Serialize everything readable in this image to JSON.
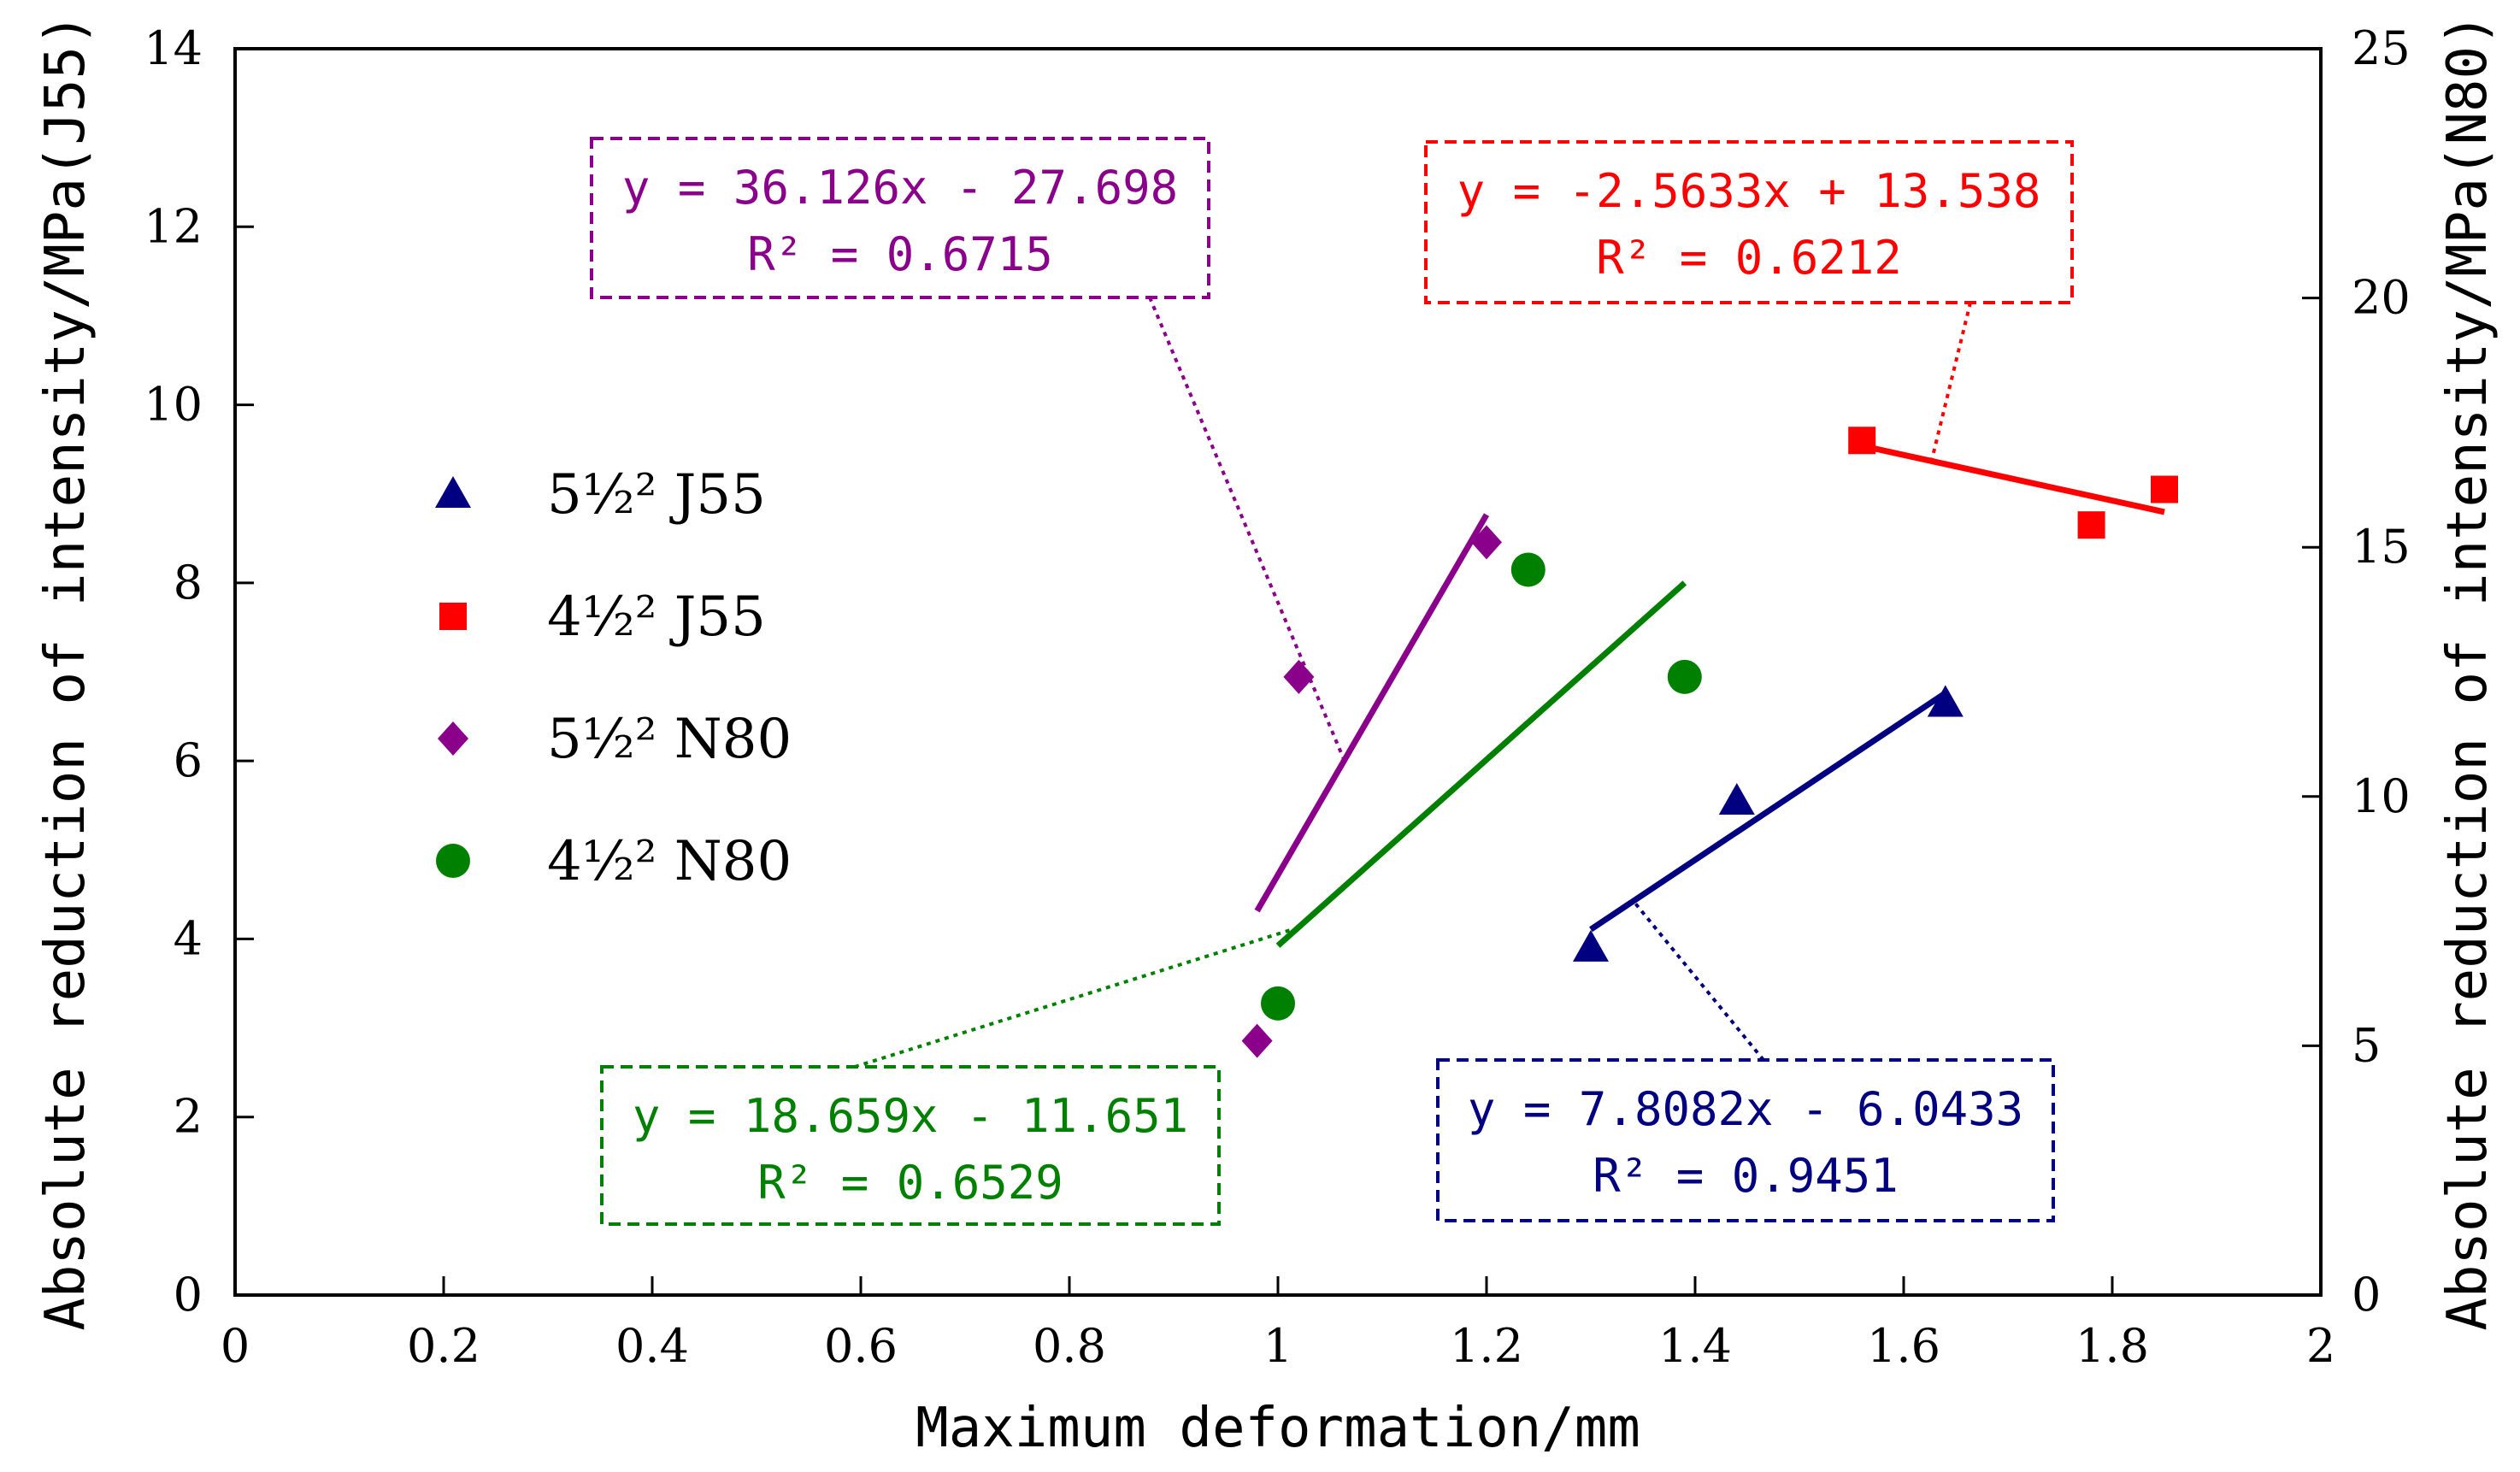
{
  "chart_data": {
    "type": "scatter",
    "x_axis": {
      "label": "Maximum deformation/mm",
      "range": [
        0,
        2
      ],
      "ticks": [
        "0",
        "0.2",
        "0.4",
        "0.6",
        "0.8",
        "1",
        "1.2",
        "1.4",
        "1.6",
        "1.8",
        "2"
      ]
    },
    "y_axis_left": {
      "label": "Absolute reduction of intensity/MPa(J55)",
      "range": [
        0,
        14
      ],
      "ticks": [
        "0",
        "2",
        "4",
        "6",
        "8",
        "10",
        "12",
        "14"
      ]
    },
    "y_axis_right": {
      "label": "Absolute reduction of intensity/MPa(N80)",
      "range": [
        0,
        25
      ],
      "ticks": [
        "0",
        "5",
        "10",
        "15",
        "20",
        "25"
      ]
    },
    "grid": false,
    "legend_position": "left",
    "series": [
      {
        "name": "5½² J55",
        "axis": "left",
        "marker": "triangle",
        "color": "#000080",
        "points": [
          [
            1.3,
            3.9
          ],
          [
            1.44,
            5.55
          ],
          [
            1.64,
            6.65
          ]
        ],
        "trendline": {
          "x_range": [
            1.3,
            1.64
          ],
          "equation": "y = 7.8082x - 6.0433",
          "r2": "R² = 0.9451"
        }
      },
      {
        "name": "4½² J55",
        "axis": "left",
        "marker": "square",
        "color": "#ff0000",
        "points": [
          [
            1.56,
            9.6
          ],
          [
            1.78,
            8.65
          ],
          [
            1.85,
            9.05
          ]
        ],
        "trendline": {
          "x_range": [
            1.56,
            1.85
          ],
          "equation": "y = -2.5633x + 13.538",
          "r2": "R² = 0.6212"
        }
      },
      {
        "name": "5½² N80",
        "axis": "right",
        "marker": "diamond",
        "color": "#8b008b",
        "points": [
          [
            0.98,
            5.1
          ],
          [
            1.02,
            12.4
          ],
          [
            1.2,
            15.1
          ]
        ],
        "trendline": {
          "x_range": [
            0.98,
            1.2
          ],
          "equation": "y = 36.126x - 27.698",
          "r2": "R² = 0.6715"
        }
      },
      {
        "name": "4½² N80",
        "axis": "right",
        "marker": "circle",
        "color": "#008000",
        "points": [
          [
            1.0,
            5.85
          ],
          [
            1.24,
            14.55
          ],
          [
            1.39,
            12.4
          ]
        ],
        "trendline": {
          "x_range": [
            1.0,
            1.39
          ],
          "equation": "y = 18.659x - 11.651",
          "r2": "R² = 0.6529"
        }
      }
    ]
  }
}
